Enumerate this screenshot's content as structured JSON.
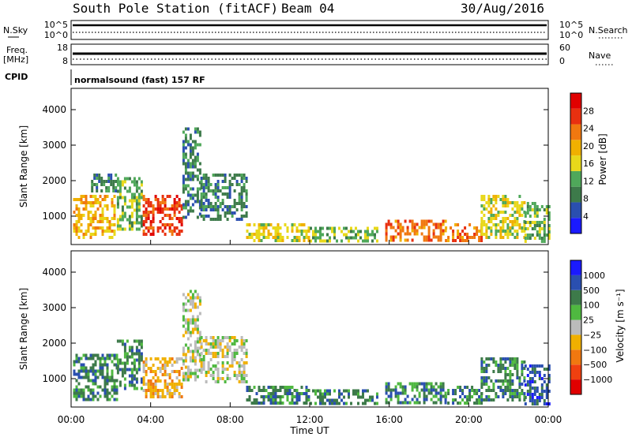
{
  "header": {
    "station": "South Pole Station (fitACF)",
    "beam": "Beam 04",
    "date": "30/Aug/2016"
  },
  "panels": {
    "nsky": {
      "label": "N.Sky",
      "tick_top": "10^5",
      "tick_bottom": "10^0",
      "right_label": "N.Search",
      "right_tick_top": "10^5",
      "right_tick_bottom": "10^0"
    },
    "freq": {
      "label_line1": "Freq.",
      "label_line2": "[MHz]",
      "tick_top": "18",
      "tick_bottom": "8",
      "right_label": "Nave",
      "right_tick_top": "60",
      "right_tick_bottom": "0"
    },
    "cpid": {
      "label": "CPID",
      "text": "normalsound (fast) 157 RF"
    }
  },
  "colors": {
    "power": [
      "#1a1aff",
      "#2a4fb0",
      "#3d7a4a",
      "#4fa85a",
      "#e8d81a",
      "#f0b000",
      "#f07810",
      "#e83010",
      "#e00000"
    ],
    "velocity": [
      "#e00000",
      "#f04010",
      "#f07810",
      "#f0b000",
      "#bbbbbb",
      "#4fb840",
      "#3d7a4a",
      "#2a4fb0",
      "#1a1aff"
    ]
  },
  "chart_data": [
    {
      "type": "heatmap",
      "panel": "power",
      "ylabel": "Slant Range [km]",
      "yticks": [
        1000,
        2000,
        3000,
        4000
      ],
      "ylim": [
        200,
        4600
      ],
      "xlim": [
        0,
        24
      ],
      "colorbar": {
        "label": "Power [dB]",
        "range": [
          0,
          32
        ],
        "ticks": [
          "4",
          "8",
          "12",
          "16",
          "20",
          "24",
          "28"
        ]
      },
      "patches": [
        {
          "t0": 0.1,
          "t1": 2.2,
          "r0": 400,
          "r1": 1600,
          "v": 18
        },
        {
          "t0": 1.0,
          "t1": 2.3,
          "r0": 1700,
          "r1": 2200,
          "v": 8
        },
        {
          "t0": 2.3,
          "t1": 3.6,
          "r0": 600,
          "r1": 2100,
          "v": 14
        },
        {
          "t0": 3.6,
          "t1": 5.6,
          "r0": 500,
          "r1": 1600,
          "v": 26
        },
        {
          "t0": 5.6,
          "t1": 6.5,
          "r0": 1000,
          "r1": 3500,
          "v": 8
        },
        {
          "t0": 6.5,
          "t1": 8.8,
          "r0": 900,
          "r1": 2200,
          "v": 10
        },
        {
          "t0": 8.8,
          "t1": 12.0,
          "r0": 300,
          "r1": 800,
          "v": 16
        },
        {
          "t0": 12.0,
          "t1": 15.4,
          "r0": 300,
          "r1": 700,
          "v": 12
        },
        {
          "t0": 15.8,
          "t1": 18.8,
          "r0": 300,
          "r1": 900,
          "v": 22
        },
        {
          "t0": 18.8,
          "t1": 20.6,
          "r0": 300,
          "r1": 800,
          "v": 24
        },
        {
          "t0": 20.6,
          "t1": 22.8,
          "r0": 400,
          "r1": 1600,
          "v": 16
        },
        {
          "t0": 22.8,
          "t1": 24.0,
          "r0": 300,
          "r1": 1400,
          "v": 14
        }
      ]
    },
    {
      "type": "heatmap",
      "panel": "velocity",
      "xlabel": "Time UT",
      "ylabel": "Slant Range [km]",
      "xticks": [
        "00:00",
        "04:00",
        "08:00",
        "12:00",
        "16:00",
        "20:00",
        "00:00"
      ],
      "yticks": [
        1000,
        2000,
        3000,
        4000
      ],
      "ylim": [
        200,
        4600
      ],
      "xlim": [
        0,
        24
      ],
      "colorbar": {
        "label": "Velocity [m s⁻¹]",
        "ticks": [
          "−1000",
          "−500",
          "−100",
          "−25",
          "25",
          "100",
          "500",
          "1000"
        ]
      },
      "patches": [
        {
          "t0": 0.1,
          "t1": 2.3,
          "r0": 400,
          "r1": 1700,
          "v": 6
        },
        {
          "t0": 2.3,
          "t1": 3.6,
          "r0": 700,
          "r1": 2100,
          "v": 6
        },
        {
          "t0": 3.6,
          "t1": 5.6,
          "r0": 500,
          "r1": 1600,
          "v": 3
        },
        {
          "t0": 5.6,
          "t1": 6.5,
          "r0": 1000,
          "r1": 3500,
          "v": 4
        },
        {
          "t0": 6.5,
          "t1": 8.8,
          "r0": 900,
          "r1": 2200,
          "v": 4
        },
        {
          "t0": 8.8,
          "t1": 12.0,
          "r0": 300,
          "r1": 800,
          "v": 6
        },
        {
          "t0": 12.0,
          "t1": 15.4,
          "r0": 300,
          "r1": 700,
          "v": 6
        },
        {
          "t0": 15.8,
          "t1": 18.8,
          "r0": 300,
          "r1": 900,
          "v": 6
        },
        {
          "t0": 18.8,
          "t1": 20.6,
          "r0": 300,
          "r1": 800,
          "v": 6
        },
        {
          "t0": 20.6,
          "t1": 22.8,
          "r0": 400,
          "r1": 1600,
          "v": 6
        },
        {
          "t0": 22.8,
          "t1": 24.0,
          "r0": 300,
          "r1": 1400,
          "v": 7
        }
      ]
    }
  ]
}
